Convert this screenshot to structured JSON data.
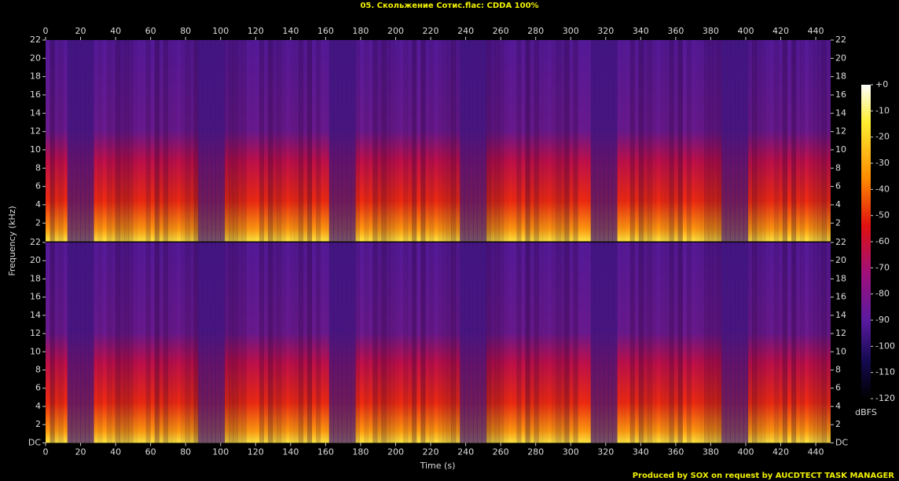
{
  "chart_data": [
    {
      "type": "spectrogram",
      "title": "05. Скольжение Сотис.flac: CDDA 100%",
      "ylabel": "Frequency (kHz)",
      "xlim": [
        0,
        448.5
      ],
      "xticks": [
        0,
        20,
        40,
        60,
        80,
        100,
        120,
        140,
        160,
        180,
        200,
        220,
        240,
        260,
        280,
        300,
        320,
        340,
        360,
        380,
        400,
        420,
        440
      ],
      "ylim": [
        0,
        22
      ],
      "yticks": [
        2,
        4,
        6,
        8,
        10,
        12,
        14,
        16,
        18,
        20,
        22
      ]
    },
    {
      "type": "spectrogram",
      "xlabel": "Time (s)",
      "xlim": [
        0,
        448.5
      ],
      "xticks": [
        0,
        20,
        40,
        60,
        80,
        100,
        120,
        140,
        160,
        180,
        200,
        220,
        240,
        260,
        280,
        300,
        320,
        340,
        360,
        380,
        400,
        420,
        440
      ],
      "ylim": [
        0,
        22
      ],
      "yticks": [
        {
          "value": 0,
          "label": "DC"
        },
        2,
        4,
        6,
        8,
        10,
        12,
        14,
        16,
        18,
        20,
        22
      ]
    }
  ],
  "colorbar": {
    "label": "dBFS",
    "lim": [
      -120,
      0
    ],
    "ticks": [
      {
        "value": 0,
        "label": "+0"
      },
      -10,
      -20,
      -30,
      -40,
      -50,
      -60,
      -70,
      -80,
      -90,
      -100,
      -110,
      -120
    ]
  },
  "footer": "Produced by SOX on request by AUCDTECT TASK MANAGER"
}
